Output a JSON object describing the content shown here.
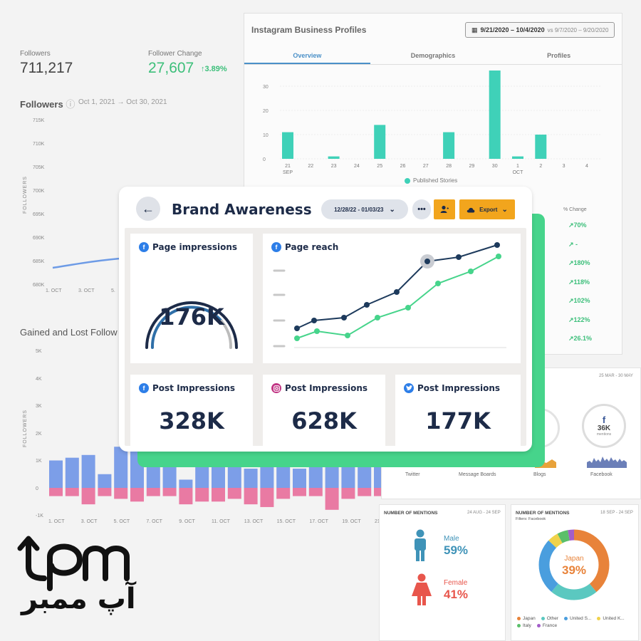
{
  "background": {
    "followers_label": "Followers",
    "followers_value": "711,217",
    "follower_change_label": "Follower Change",
    "follower_change_value": "27,607",
    "follower_change_pct": "3.89%",
    "followers_section_title": "Followers",
    "followers_section_range": "Oct 1, 2021 → Oct 30, 2021",
    "followers_y_ticks": [
      "715K",
      "710K",
      "705K",
      "700K",
      "695K",
      "690K",
      "685K",
      "680K"
    ],
    "followers_x_ticks": [
      "1. OCT",
      "3. OCT",
      "5."
    ],
    "followers_axis_label": "FOLLOWERS",
    "gained_title": "Gained and Lost Follow",
    "gained_y_ticks": [
      "5K",
      "4K",
      "3K",
      "2K",
      "1K",
      "0",
      "-1K"
    ],
    "gained_x_ticks": [
      "1. OCT",
      "3. OCT",
      "5. OCT",
      "7. OCT",
      "9. OCT",
      "11. OCT",
      "13. OCT",
      "15. OCT",
      "17. OCT",
      "19. OCT",
      "21."
    ],
    "gained_axis_label": "FOLLOWERS"
  },
  "instagram": {
    "title": "Instagram Business Profiles",
    "date_range": "9/21/2020 – 10/4/2020",
    "compare_range": "vs 9/7/2020 – 9/20/2020",
    "tabs": [
      "Overview",
      "Demographics",
      "Profiles"
    ],
    "y_ticks": [
      "30",
      "20",
      "10",
      "0"
    ],
    "x_ticks": [
      "21",
      "22",
      "23",
      "24",
      "25",
      "26",
      "27",
      "28",
      "29",
      "30",
      "1",
      "2",
      "3",
      "4"
    ],
    "month_sep": "SEP",
    "month_oct": "OCT",
    "legend": "Published Stories",
    "change_header": "% Change",
    "changes": [
      "↗70%",
      "↗ -",
      "↗180%",
      "↗118%",
      "↗102%",
      "↗122%",
      "↗26.1%"
    ]
  },
  "mentions_sources": {
    "date": "25 MAR - 30 MAY",
    "fb_count": "36K",
    "fb_unit": "mentions",
    "labels": [
      "Twitter",
      "Message Boards",
      "Blogs",
      "Facebook"
    ],
    "k_partial": "K"
  },
  "mentions_gender": {
    "title": "NUMBER OF MENTIONS",
    "date": "24 AUG - 24 SEP",
    "male_label": "Male",
    "male_pct": "59%",
    "female_label": "Female",
    "female_pct": "41%"
  },
  "mentions_country": {
    "title": "NUMBER OF MENTIONS",
    "date": "18 SEP - 24 SEP",
    "filter": "Filters: Facebook",
    "center_label": "Japan",
    "center_pct": "39%",
    "legend": [
      {
        "name": "Japan",
        "color": "#e8833a"
      },
      {
        "name": "Other",
        "color": "#5bc8c0"
      },
      {
        "name": "United S...",
        "color": "#4a9ede"
      },
      {
        "name": "United K...",
        "color": "#f0d24a"
      },
      {
        "name": "Italy",
        "color": "#5bbf6a"
      },
      {
        "name": "France",
        "color": "#a35ec9"
      }
    ]
  },
  "card": {
    "title": "Brand Awareness",
    "date_range": "12/28/22 - 01/03/23",
    "more": "•••",
    "export_label": "Export",
    "tiles": {
      "page_impressions": {
        "label": "Page impressions",
        "value": "176K"
      },
      "page_reach": {
        "label": "Page reach"
      },
      "fb_post": {
        "label": "Post Impressions",
        "value": "328K"
      },
      "ig_post": {
        "label": "Post Impressions",
        "value": "628K"
      },
      "tw_post": {
        "label": "Post Impressions",
        "value": "177K"
      }
    }
  },
  "logo": {
    "farsi": "آپ ممبر"
  },
  "colors": {
    "navy": "#1d2b48",
    "accent_orange": "#f2a51d",
    "green_shadow": "#46d48b",
    "teal_bar": "#3fd1b8",
    "blue_bar": "#7c9ee8",
    "pink_bar": "#e97aa3"
  }
}
